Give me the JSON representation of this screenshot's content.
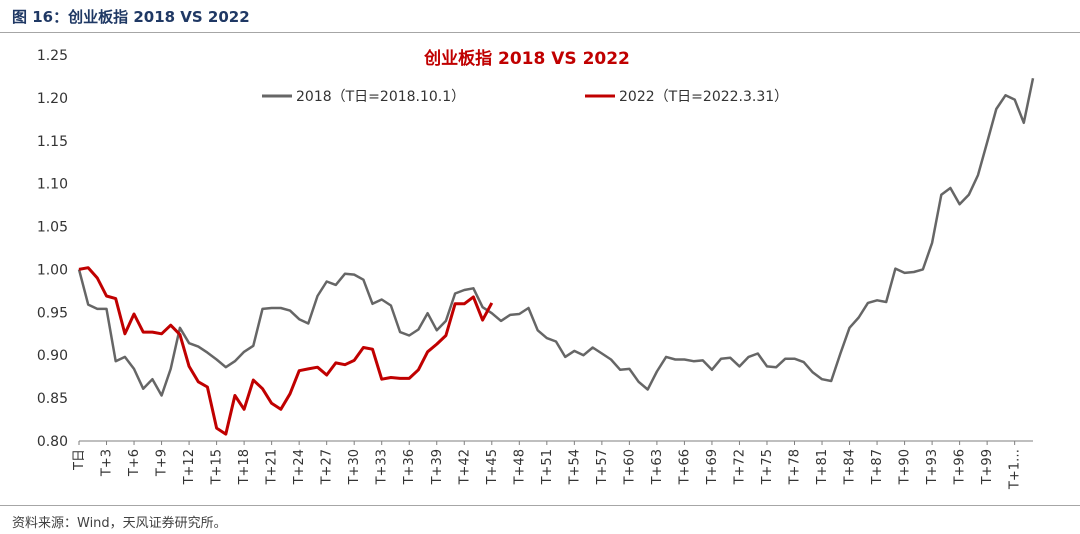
{
  "header": {
    "title": "图 16：创业板指 2018 VS 2022"
  },
  "footer": {
    "source": "资料来源：Wind，天风证券研究所。"
  },
  "colors": {
    "series_2018": "#666666",
    "series_2022": "#c00000",
    "chart_title": "#c00000",
    "header_title": "#1f3864"
  },
  "chart_data": {
    "type": "line",
    "title": "创业板指 2018 VS 2022",
    "xlabel": "",
    "ylabel": "",
    "ylim": [
      0.8,
      1.25
    ],
    "yticks": [
      "1.25",
      "1.20",
      "1.15",
      "1.10",
      "1.05",
      "1.00",
      "0.95",
      "0.90",
      "0.85",
      "0.80"
    ],
    "grid": false,
    "legend_position": "top",
    "xtick_labels": [
      "T日",
      "T+3",
      "T+6",
      "T+9",
      "T+12",
      "T+15",
      "T+18",
      "T+21",
      "T+24",
      "T+27",
      "T+30",
      "T+33",
      "T+36",
      "T+39",
      "T+42",
      "T+45",
      "T+48",
      "T+51",
      "T+54",
      "T+57",
      "T+60",
      "T+63",
      "T+66",
      "T+69",
      "T+72",
      "T+75",
      "T+78",
      "T+81",
      "T+84",
      "T+87",
      "T+90",
      "T+93",
      "T+96",
      "T+99",
      "T+1…"
    ],
    "series": [
      {
        "name": "2018（T日=2018.10.1）",
        "values": [
          1.0,
          0.959,
          0.954,
          0.954,
          0.893,
          0.898,
          0.884,
          0.861,
          0.872,
          0.853,
          0.884,
          0.932,
          0.914,
          0.91,
          0.903,
          0.895,
          0.886,
          0.893,
          0.904,
          0.911,
          0.954,
          0.955,
          0.955,
          0.952,
          0.942,
          0.937,
          0.969,
          0.986,
          0.982,
          0.995,
          0.994,
          0.988,
          0.96,
          0.965,
          0.958,
          0.927,
          0.923,
          0.93,
          0.949,
          0.929,
          0.94,
          0.972,
          0.976,
          0.978,
          0.956,
          0.949,
          0.94,
          0.947,
          0.948,
          0.955,
          0.929,
          0.92,
          0.916,
          0.898,
          0.905,
          0.9,
          0.909,
          0.902,
          0.895,
          0.883,
          0.884,
          0.869,
          0.86,
          0.881,
          0.898,
          0.895,
          0.895,
          0.893,
          0.894,
          0.883,
          0.896,
          0.897,
          0.887,
          0.898,
          0.902,
          0.887,
          0.886,
          0.896,
          0.896,
          0.892,
          0.88,
          0.872,
          0.87,
          0.902,
          0.932,
          0.944,
          0.961,
          0.964,
          0.962,
          1.001,
          0.996,
          0.997,
          1.0,
          1.031,
          1.087,
          1.095,
          1.076,
          1.087,
          1.11,
          1.148,
          1.187,
          1.203,
          1.198,
          1.171,
          1.223
        ]
      },
      {
        "name": "2022（T日=2022.3.31）",
        "values": [
          1.0,
          1.002,
          0.99,
          0.969,
          0.966,
          0.925,
          0.948,
          0.927,
          0.927,
          0.925,
          0.935,
          0.924,
          0.887,
          0.869,
          0.863,
          0.815,
          0.808,
          0.853,
          0.837,
          0.871,
          0.861,
          0.844,
          0.837,
          0.855,
          0.882,
          0.884,
          0.886,
          0.877,
          0.891,
          0.889,
          0.894,
          0.909,
          0.907,
          0.872,
          0.874,
          0.873,
          0.873,
          0.883,
          0.904,
          0.913,
          0.923,
          0.96,
          0.96,
          0.968,
          0.941,
          0.961
        ]
      }
    ]
  }
}
